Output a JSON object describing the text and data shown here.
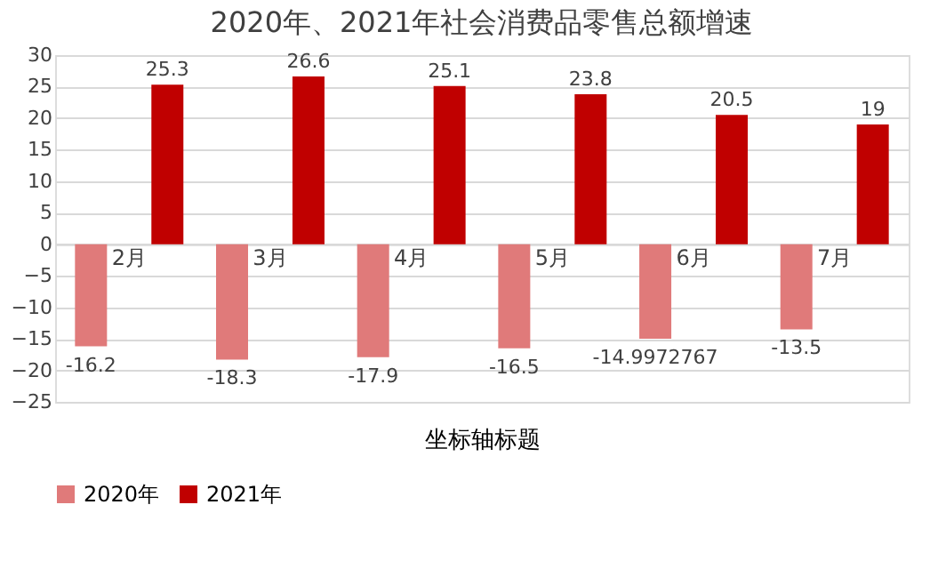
{
  "chart_data": {
    "type": "bar",
    "title": "2020年、2021年社会消费品零售总额增速",
    "xlabel": "坐标轴标题",
    "categories": [
      "2月",
      "3月",
      "4月",
      "5月",
      "6月",
      "7月"
    ],
    "series": [
      {
        "name": "2020年",
        "color": "#e07a7a",
        "values": [
          -16.2,
          -18.3,
          -17.9,
          -16.5,
          -14.9972767,
          -13.5
        ]
      },
      {
        "name": "2021年",
        "color": "#c00000",
        "values": [
          25.3,
          26.6,
          25.1,
          23.8,
          20.5,
          19
        ]
      }
    ],
    "ylim": [
      -25,
      30
    ],
    "yticks": [
      -25,
      -20,
      -15,
      -10,
      -5,
      0,
      5,
      10,
      15,
      20,
      25,
      30
    ],
    "grid": "y",
    "legend": "bottom",
    "data_labels": true
  }
}
